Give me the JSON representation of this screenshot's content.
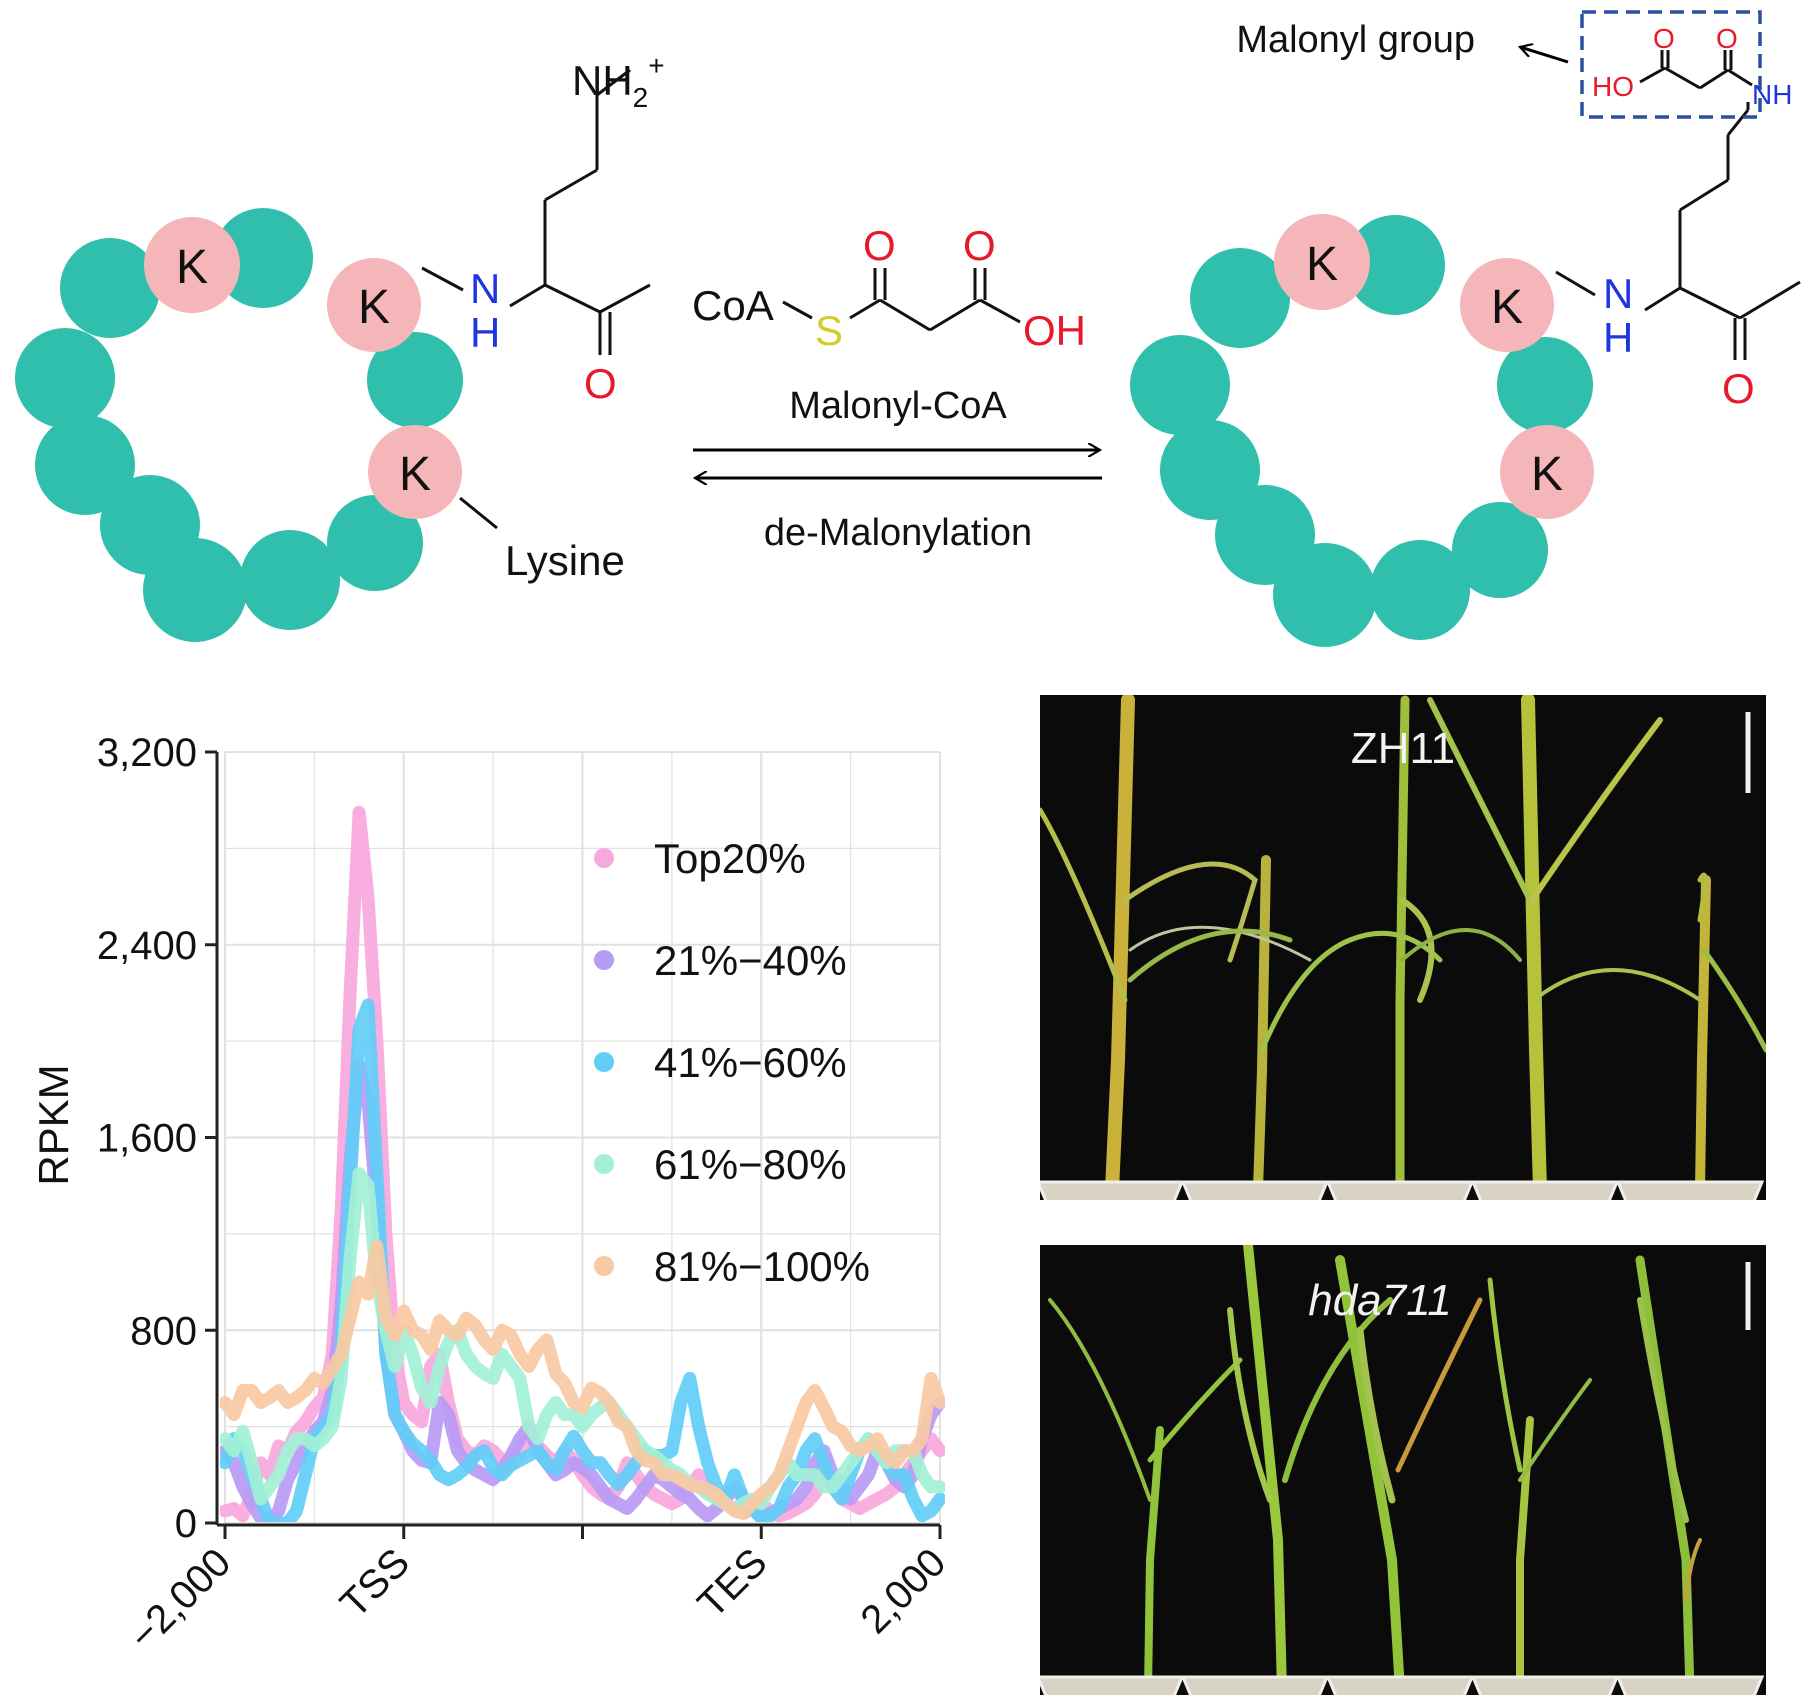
{
  "reaction": {
    "residue_label": "K",
    "lysine_label": "Lysine",
    "amine_n": "N",
    "amine_h": "H",
    "charged_amine": "NH",
    "charged_amine_sub": "2",
    "charged_amine_sup": "+",
    "carbonyl_o": "O",
    "coa_label": "CoA",
    "sulfur_label": "S",
    "oh_label": "OH",
    "forward_label": "Malonyl-CoA",
    "reverse_label": "de-Malonylation",
    "malonyl_group_label": "Malonyl group",
    "ho_label": "HO",
    "nh_label": "NH",
    "colors": {
      "bead": "#2fbfac",
      "lysine": "#f4b6b8",
      "oxygen": "#e8192c",
      "nitrogen": "#1f35e0",
      "sulfur": "#d4cc2a",
      "dashed_box": "#2b4fa0"
    }
  },
  "chart_data": {
    "type": "line",
    "title": "",
    "xlabel": "",
    "ylabel": "RPKM",
    "ylim": [
      0,
      3200
    ],
    "yticks": [
      0,
      800,
      1600,
      2400,
      3200
    ],
    "ytick_labels": [
      "0",
      "800",
      "1,600",
      "2,400",
      "3,200"
    ],
    "x": [
      0,
      0.05,
      0.1,
      0.15,
      0.2,
      0.25,
      0.3,
      0.35,
      0.4,
      0.45,
      0.5,
      0.55,
      0.6,
      0.65,
      0.7,
      0.75,
      0.8,
      0.85,
      0.9,
      0.95,
      1.0,
      1.05,
      1.1,
      1.15,
      1.2,
      1.25,
      1.3,
      1.35,
      1.4,
      1.45,
      1.5,
      1.55,
      1.6,
      1.65,
      1.7,
      1.75,
      1.8,
      1.85,
      1.9,
      1.95,
      2.0,
      2.05,
      2.1,
      2.15,
      2.2,
      2.25,
      2.3,
      2.35,
      2.4,
      2.45,
      2.5,
      2.55,
      2.6,
      2.65,
      2.7,
      2.75,
      2.8,
      2.85,
      2.9,
      2.95,
      3.0,
      3.05,
      3.1,
      3.15,
      3.2,
      3.25,
      3.3,
      3.35,
      3.4,
      3.45,
      3.5,
      3.55,
      3.6,
      3.65,
      3.7,
      3.75,
      3.8,
      3.85,
      3.9,
      3.95,
      4.0
    ],
    "xticks": [
      0,
      1,
      2,
      3,
      4
    ],
    "xtick_labels": [
      "-2,000",
      "TSS",
      "",
      "TES",
      "2,000"
    ],
    "series": [
      {
        "name": "Top20%",
        "color": "#f7a8dc",
        "values": [
          50,
          60,
          30,
          120,
          250,
          200,
          320,
          300,
          380,
          420,
          480,
          520,
          700,
          1300,
          2200,
          2950,
          2600,
          2000,
          1200,
          700,
          500,
          450,
          420,
          650,
          700,
          500,
          350,
          300,
          280,
          320,
          300,
          260,
          240,
          300,
          350,
          320,
          280,
          250,
          300,
          260,
          200,
          150,
          120,
          100,
          150,
          250,
          200,
          150,
          120,
          100,
          80,
          100,
          150,
          200,
          150,
          100,
          80,
          60,
          40,
          60,
          80,
          50,
          30,
          40,
          60,
          80,
          120,
          200,
          150,
          100,
          80,
          60,
          80,
          100,
          120,
          150,
          200,
          250,
          300,
          350,
          300
        ]
      },
      {
        "name": "21%-40%",
        "color": "#b79af5",
        "values": [
          300,
          250,
          150,
          80,
          20,
          10,
          50,
          180,
          250,
          320,
          380,
          420,
          550,
          900,
          1500,
          1900,
          1750,
          1300,
          700,
          450,
          380,
          300,
          260,
          250,
          500,
          450,
          300,
          250,
          220,
          200,
          180,
          220,
          280,
          350,
          400,
          300,
          250,
          200,
          220,
          250,
          230,
          200,
          150,
          100,
          80,
          60,
          100,
          150,
          200,
          180,
          150,
          120,
          100,
          60,
          30,
          60,
          100,
          150,
          100,
          60,
          30,
          40,
          60,
          80,
          100,
          150,
          250,
          300,
          200,
          150,
          100,
          150,
          200,
          300,
          250,
          180,
          150,
          200,
          350,
          450,
          500
        ]
      },
      {
        "name": "41%-60%",
        "color": "#62cdf6",
        "values": [
          250,
          350,
          300,
          200,
          100,
          0,
          0,
          0,
          50,
          200,
          350,
          400,
          450,
          700,
          1400,
          2050,
          2150,
          1450,
          700,
          450,
          380,
          330,
          300,
          260,
          200,
          180,
          200,
          230,
          280,
          300,
          230,
          200,
          240,
          260,
          280,
          300,
          250,
          220,
          300,
          360,
          300,
          250,
          250,
          200,
          160,
          200,
          250,
          300,
          280,
          280,
          300,
          500,
          600,
          400,
          250,
          150,
          100,
          200,
          100,
          60,
          20,
          30,
          60,
          150,
          200,
          300,
          350,
          250,
          150,
          100,
          200,
          300,
          350,
          300,
          250,
          200,
          200,
          100,
          30,
          50,
          100
        ]
      },
      {
        "name": "61%-80%",
        "color": "#a3f0d6",
        "values": [
          350,
          300,
          380,
          250,
          100,
          150,
          200,
          300,
          350,
          350,
          320,
          350,
          400,
          600,
          1100,
          1450,
          1400,
          1000,
          800,
          650,
          800,
          700,
          560,
          500,
          650,
          750,
          800,
          700,
          650,
          620,
          600,
          700,
          650,
          600,
          400,
          350,
          450,
          500,
          450,
          450,
          400,
          450,
          480,
          500,
          450,
          400,
          350,
          300,
          280,
          250,
          220,
          200,
          160,
          150,
          120,
          100,
          80,
          60,
          80,
          100,
          80,
          150,
          200,
          250,
          200,
          200,
          200,
          150,
          150,
          200,
          250,
          300,
          350,
          300,
          250,
          300,
          300,
          300,
          200,
          150,
          150
        ]
      },
      {
        "name": "81%-100%",
        "color": "#f9c9a3",
        "values": [
          500,
          450,
          550,
          550,
          500,
          520,
          550,
          500,
          520,
          550,
          600,
          580,
          640,
          700,
          850,
          1000,
          950,
          1150,
          850,
          780,
          880,
          800,
          780,
          720,
          840,
          800,
          780,
          850,
          820,
          760,
          720,
          800,
          780,
          700,
          650,
          720,
          760,
          620,
          580,
          500,
          480,
          560,
          540,
          500,
          420,
          400,
          300,
          260,
          250,
          200,
          200,
          180,
          160,
          150,
          140,
          120,
          80,
          50,
          40,
          80,
          120,
          150,
          200,
          300,
          400,
          500,
          550,
          480,
          400,
          380,
          320,
          300,
          320,
          350,
          280,
          250,
          300,
          300,
          350,
          600,
          500
        ]
      }
    ]
  },
  "photos": {
    "top_label": "ZH11",
    "bottom_label": "hda711"
  }
}
